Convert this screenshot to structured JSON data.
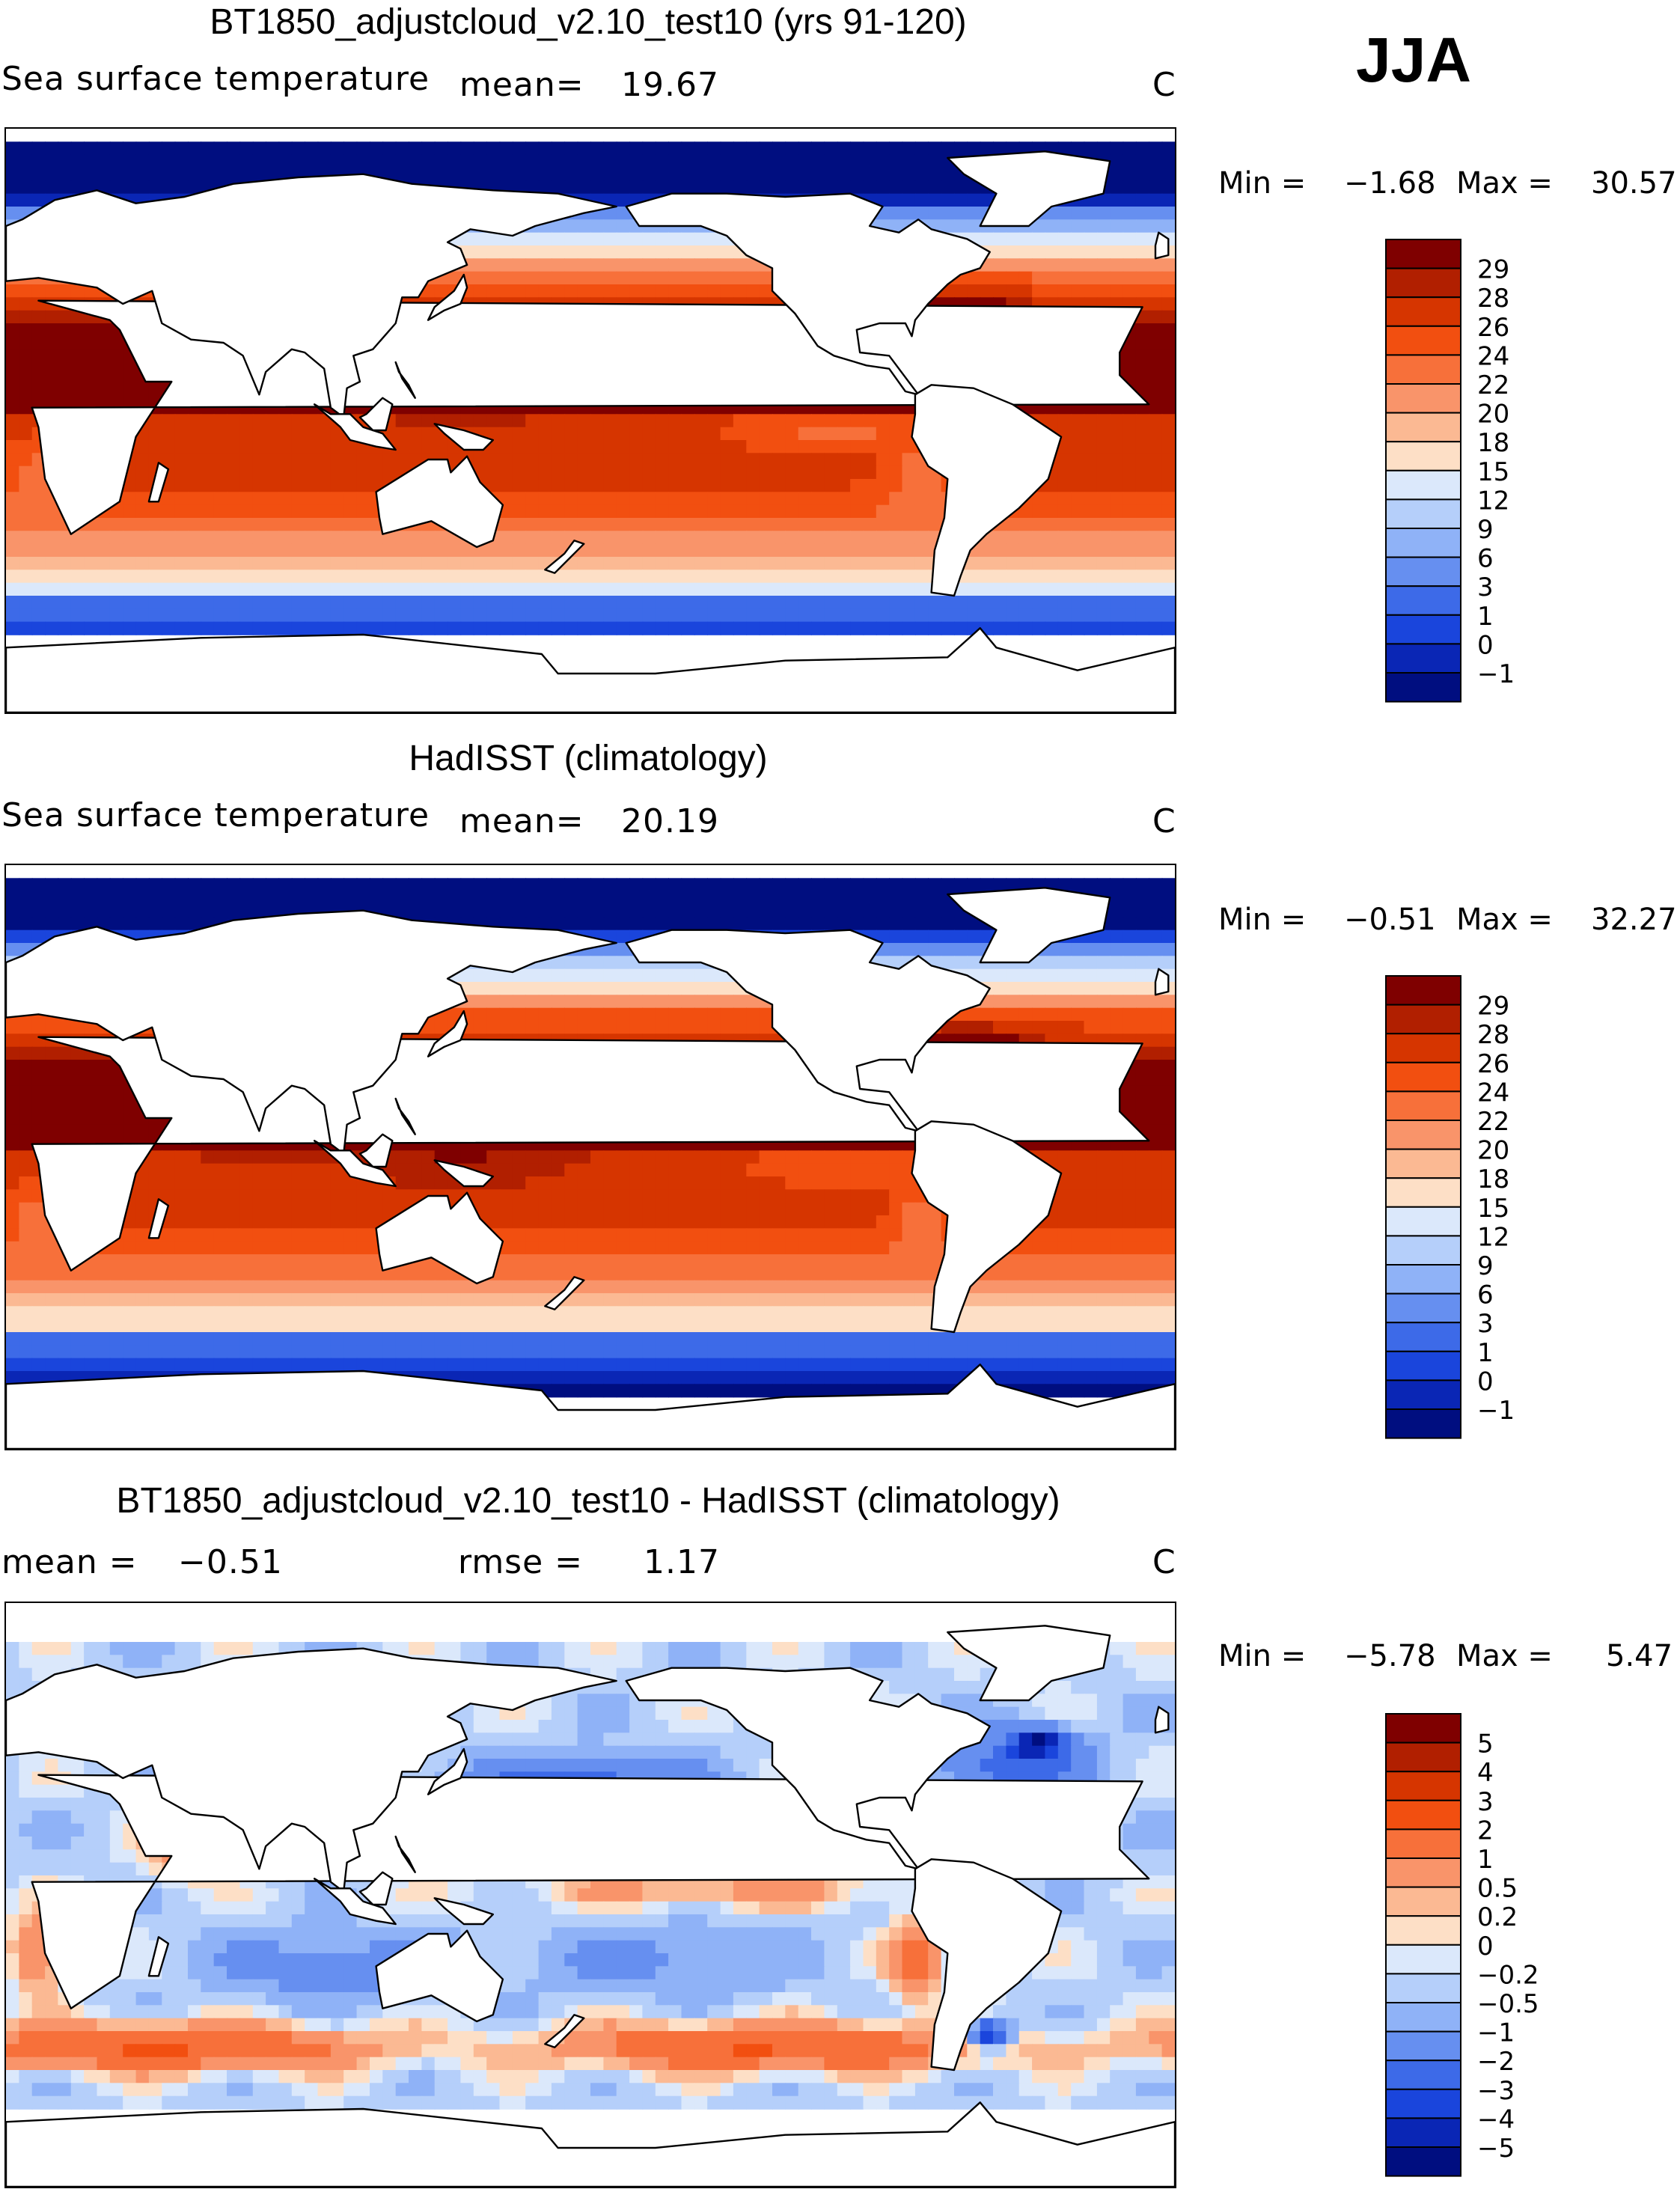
{
  "season": "JJA",
  "panels": [
    {
      "id": "model",
      "title": "BT1850_adjustcloud_v2.10_test10 (yrs 91-120)",
      "left_label": "Sea surface temperature",
      "mean_label": "mean=",
      "mean_value": "19.67",
      "units": "C",
      "min_label": "Min =",
      "min_value": "−1.68",
      "max_label": "Max =",
      "max_value": "30.57",
      "levels": [
        "29",
        "28",
        "26",
        "24",
        "22",
        "20",
        "18",
        "15",
        "12",
        "9",
        "6",
        "3",
        "1",
        "0",
        "−1"
      ],
      "colors": [
        "#7f0000",
        "#b11f00",
        "#d63500",
        "#f24f10",
        "#f7703a",
        "#f9946a",
        "#fbb993",
        "#fddfc6",
        "#dbe8fb",
        "#b5cffa",
        "#8fb2f7",
        "#668ff0",
        "#3d6ae8",
        "#1a45dc",
        "#0a26b5",
        "#000e80"
      ]
    },
    {
      "id": "obs",
      "title": "HadISST (climatology)",
      "left_label": "Sea surface temperature",
      "mean_label": "mean=",
      "mean_value": "20.19",
      "units": "C",
      "min_label": "Min =",
      "min_value": "−0.51",
      "max_label": "Max =",
      "max_value": "32.27",
      "levels": [
        "29",
        "28",
        "26",
        "24",
        "22",
        "20",
        "18",
        "15",
        "12",
        "9",
        "6",
        "3",
        "1",
        "0",
        "−1"
      ],
      "colors": [
        "#7f0000",
        "#b11f00",
        "#d63500",
        "#f24f10",
        "#f7703a",
        "#f9946a",
        "#fbb993",
        "#fddfc6",
        "#dbe8fb",
        "#b5cffa",
        "#8fb2f7",
        "#668ff0",
        "#3d6ae8",
        "#1a45dc",
        "#0a26b5",
        "#000e80"
      ]
    },
    {
      "id": "diff",
      "title": "BT1850_adjustcloud_v2.10_test10 - HadISST (climatology)",
      "mean_label": "mean =",
      "mean_value": "−0.51",
      "rmse_label": "rmse =",
      "rmse_value": "1.17",
      "units": "C",
      "min_label": "Min =",
      "min_value": "−5.78",
      "max_label": "Max =",
      "max_value": "5.47",
      "levels": [
        "5",
        "4",
        "3",
        "2",
        "1",
        "0.5",
        "0.2",
        "0",
        "−0.2",
        "−0.5",
        "−1",
        "−2",
        "−3",
        "−4",
        "−5"
      ],
      "colors": [
        "#7f0000",
        "#b11f00",
        "#d63500",
        "#f24f10",
        "#f7703a",
        "#f9946a",
        "#fbb993",
        "#fddfc6",
        "#dbe8fb",
        "#b5cffa",
        "#8fb2f7",
        "#668ff0",
        "#3d6ae8",
        "#1a45dc",
        "#0a26b5",
        "#000e80"
      ]
    }
  ],
  "chart_data": [
    {
      "type": "heatmap",
      "title": "BT1850_adjustcloud_v2.10_test10 (yrs 91-120)",
      "variable": "Sea surface temperature",
      "units": "C",
      "season": "JJA",
      "mean": 19.67,
      "min": -1.68,
      "max": 30.57,
      "contour_levels": [
        -1,
        0,
        1,
        3,
        6,
        9,
        12,
        15,
        18,
        20,
        22,
        24,
        26,
        28,
        29
      ]
    },
    {
      "type": "heatmap",
      "title": "HadISST (climatology)",
      "variable": "Sea surface temperature",
      "units": "C",
      "season": "JJA",
      "mean": 20.19,
      "min": -0.51,
      "max": 32.27,
      "contour_levels": [
        -1,
        0,
        1,
        3,
        6,
        9,
        12,
        15,
        18,
        20,
        22,
        24,
        26,
        28,
        29
      ]
    },
    {
      "type": "heatmap",
      "title": "BT1850_adjustcloud_v2.10_test10 - HadISST (climatology)",
      "units": "C",
      "season": "JJA",
      "mean": -0.51,
      "rmse": 1.17,
      "min": -5.78,
      "max": 5.47,
      "contour_levels": [
        -5,
        -4,
        -3,
        -2,
        -1,
        -0.5,
        -0.2,
        0,
        0.2,
        0.5,
        1,
        2,
        3,
        4,
        5
      ]
    }
  ]
}
